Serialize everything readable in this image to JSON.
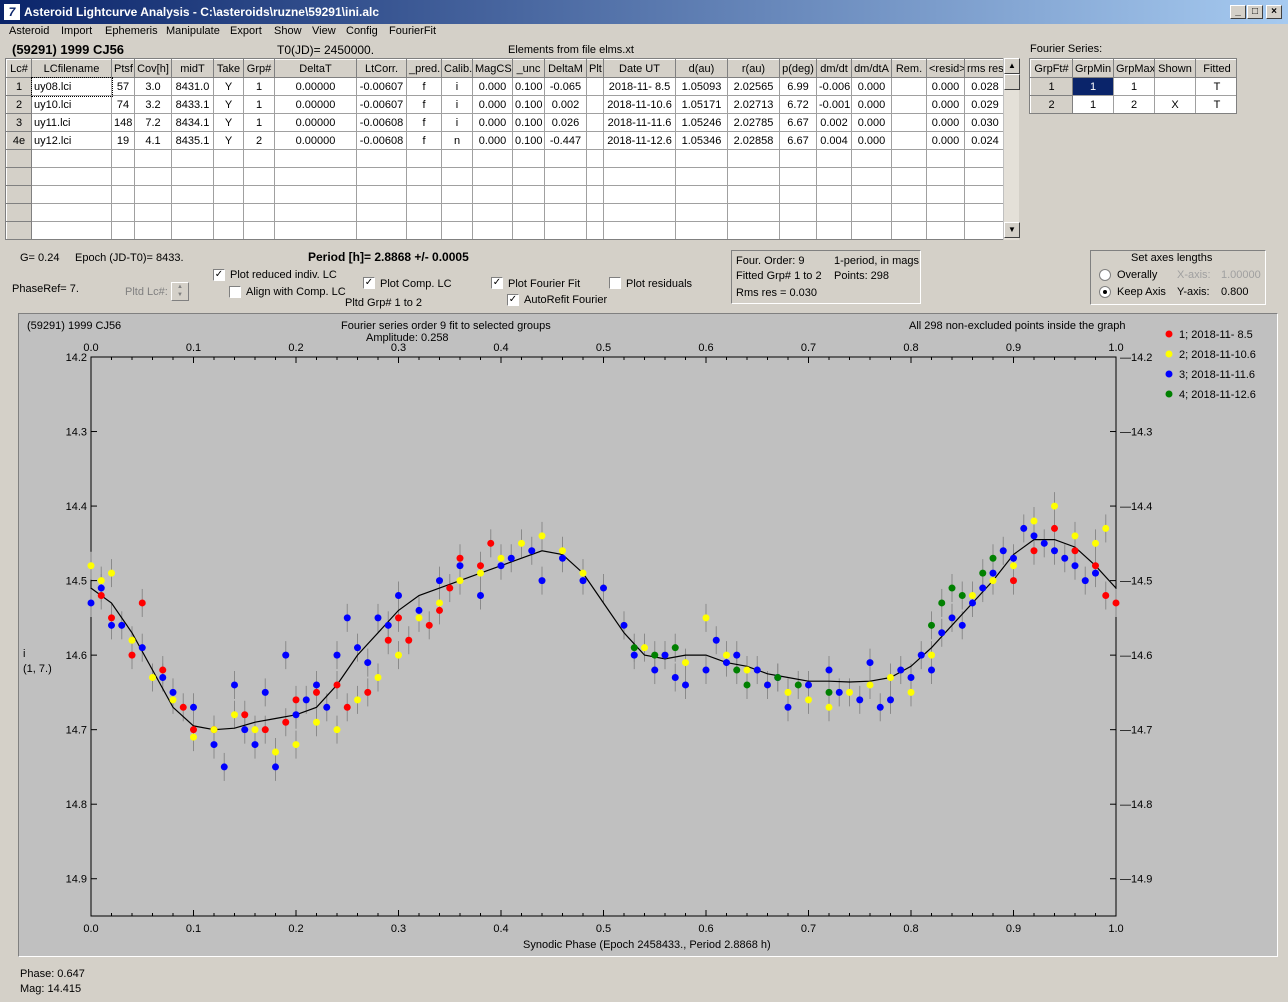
{
  "window": {
    "title": "Asteroid Lightcurve Analysis - C:\\asteroids\\ruzne\\59291\\ini.alc",
    "icon": "alc-app-icon",
    "controls": [
      "_",
      "□",
      "×"
    ]
  },
  "menu": [
    "Asteroid",
    "Import",
    "Ephemeris",
    "Manipulate",
    "Export",
    "Show",
    "View",
    "Config",
    "FourierFit"
  ],
  "header": {
    "object": "(59291) 1999 CJ56",
    "t0": "T0(JD)= 2450000.",
    "elements": "Elements from file elms.xt"
  },
  "lc_table": {
    "columns": [
      "Lc#",
      "LCfilename",
      "Ptsf",
      "Cov[h]",
      "midT",
      "Take",
      "Grp#",
      "DeltaT",
      "LtCorr.",
      "_pred.",
      "Calib.",
      "MagCS",
      "_unc",
      "DeltaM",
      "Plt",
      "Date UT",
      "d(au)",
      "r(au)",
      "p(deg)",
      "dm/dt",
      "dm/dtA",
      "Rem.",
      "<resid>",
      "rms res"
    ],
    "rows": [
      [
        "1",
        "uy08.lci",
        "57",
        "3.0",
        "8431.0",
        "Y",
        "1",
        "0.00000",
        "-0.00607",
        "f",
        "i",
        "0.000",
        "0.100",
        "-0.065",
        "",
        "2018-11- 8.5",
        "1.05093",
        "2.02565",
        "6.99",
        "-0.006",
        "0.000",
        "",
        "0.000",
        "0.028"
      ],
      [
        "2",
        "uy10.lci",
        "74",
        "3.2",
        "8433.1",
        "Y",
        "1",
        "0.00000",
        "-0.00607",
        "f",
        "i",
        "0.000",
        "0.100",
        "0.002",
        "",
        "2018-11-10.6",
        "1.05171",
        "2.02713",
        "6.72",
        "-0.001",
        "0.000",
        "",
        "0.000",
        "0.029"
      ],
      [
        "3",
        "uy11.lci",
        "148",
        "7.2",
        "8434.1",
        "Y",
        "1",
        "0.00000",
        "-0.00608",
        "f",
        "i",
        "0.000",
        "0.100",
        "0.026",
        "",
        "2018-11-11.6",
        "1.05246",
        "2.02785",
        "6.67",
        "0.002",
        "0.000",
        "",
        "0.000",
        "0.030"
      ],
      [
        "4e",
        "uy12.lci",
        "19",
        "4.1",
        "8435.1",
        "Y",
        "2",
        "0.00000",
        "-0.00608",
        "f",
        "n",
        "0.000",
        "0.100",
        "-0.447",
        "",
        "2018-11-12.6",
        "1.05346",
        "2.02858",
        "6.67",
        "0.004",
        "0.000",
        "",
        "0.000",
        "0.024"
      ]
    ]
  },
  "fourier_series": {
    "title": "Fourier Series:",
    "columns": [
      "GrpFt#",
      "GrpMin",
      "GrpMax",
      "Shown",
      "Fitted"
    ],
    "rows": [
      [
        "1",
        "1",
        "1",
        "",
        "T"
      ],
      [
        "2",
        "1",
        "2",
        "X",
        "T"
      ]
    ]
  },
  "params": {
    "g": "G= 0.24",
    "epoch": "Epoch (JD-T0)= 8433.",
    "phase_ref": "PhaseRef= 7.",
    "pltd_lc": "Pltd Lc#:",
    "period": "Period [h]= 2.8868 +/- 0.0005",
    "pltd_grp": "Pltd Grp#  1   to   2"
  },
  "checks": {
    "reduced": "Plot reduced indiv. LC",
    "align": "Align with Comp. LC",
    "comp": "Plot Comp. LC",
    "fourier": "Plot Fourier Fit",
    "residuals": "Plot residuals",
    "autorefit": "AutoRefit Fourier"
  },
  "fit_info": {
    "order": "Four. Order:  9",
    "mode": "1-period, in mags",
    "fitted": "Fitted Grp# 1 to 2",
    "points": "Points: 298",
    "rms": "Rms res     = 0.030"
  },
  "axes_panel": {
    "title": "Set axes lengths",
    "overall": "Overally",
    "keep": "Keep Axis",
    "xaxis_label": "X-axis:",
    "xaxis_value": "1.00000",
    "yaxis_label": "Y-axis:",
    "yaxis_value": "0.800"
  },
  "plot": {
    "object": "(59291) 1999 CJ56",
    "title": "Fourier series order 9 fit to selected groups",
    "amplitude": "Amplitude: 0.258",
    "points_note": "All 298 non-excluded points inside the graph",
    "ylabel1": "i",
    "ylabel2": "(1, 7.)",
    "xlabel": "Synodic Phase (Epoch 2458433., Period 2.8868 h)"
  },
  "status": {
    "phase": "Phase:  0.647",
    "mag": "Mag:    14.415"
  },
  "chart_data": {
    "type": "scatter",
    "xlim": [
      0,
      1
    ],
    "ylim": [
      14.2,
      14.95
    ],
    "y_inverted": true,
    "xticks": [
      "0.0",
      "0.1",
      "0.2",
      "0.3",
      "0.4",
      "0.5",
      "0.6",
      "0.7",
      "0.8",
      "0.9",
      "1.0"
    ],
    "yticks": [
      "14.2",
      "14.3",
      "14.4",
      "14.5",
      "14.6",
      "14.7",
      "14.8",
      "14.9"
    ],
    "legend_position": "right",
    "grid": false,
    "series": [
      {
        "name": "1; 2018-11- 8.5",
        "color": "#ff0000",
        "points": [
          [
            0.01,
            14.52
          ],
          [
            0.02,
            14.55
          ],
          [
            0.04,
            14.6
          ],
          [
            0.05,
            14.53
          ],
          [
            0.07,
            14.62
          ],
          [
            0.09,
            14.67
          ],
          [
            0.1,
            14.7
          ],
          [
            0.12,
            14.7
          ],
          [
            0.15,
            14.68
          ],
          [
            0.17,
            14.7
          ],
          [
            0.19,
            14.69
          ],
          [
            0.2,
            14.66
          ],
          [
            0.22,
            14.65
          ],
          [
            0.24,
            14.64
          ],
          [
            0.25,
            14.67
          ],
          [
            0.27,
            14.65
          ],
          [
            0.29,
            14.58
          ],
          [
            0.3,
            14.55
          ],
          [
            0.31,
            14.58
          ],
          [
            0.33,
            14.56
          ],
          [
            0.34,
            14.54
          ],
          [
            0.35,
            14.51
          ],
          [
            0.36,
            14.47
          ],
          [
            0.38,
            14.48
          ],
          [
            0.39,
            14.45
          ],
          [
            0.9,
            14.5
          ],
          [
            0.92,
            14.46
          ],
          [
            0.94,
            14.43
          ],
          [
            0.96,
            14.46
          ],
          [
            0.98,
            14.48
          ],
          [
            0.99,
            14.52
          ],
          [
            1.0,
            14.53
          ]
        ]
      },
      {
        "name": "2; 2018-11-10.6",
        "color": "#ffff00",
        "points": [
          [
            0.0,
            14.48
          ],
          [
            0.01,
            14.5
          ],
          [
            0.02,
            14.49
          ],
          [
            0.04,
            14.58
          ],
          [
            0.06,
            14.63
          ],
          [
            0.08,
            14.66
          ],
          [
            0.1,
            14.71
          ],
          [
            0.12,
            14.7
          ],
          [
            0.14,
            14.68
          ],
          [
            0.16,
            14.7
          ],
          [
            0.18,
            14.73
          ],
          [
            0.2,
            14.72
          ],
          [
            0.22,
            14.69
          ],
          [
            0.24,
            14.7
          ],
          [
            0.26,
            14.66
          ],
          [
            0.28,
            14.63
          ],
          [
            0.3,
            14.6
          ],
          [
            0.32,
            14.55
          ],
          [
            0.34,
            14.53
          ],
          [
            0.36,
            14.5
          ],
          [
            0.38,
            14.49
          ],
          [
            0.4,
            14.47
          ],
          [
            0.42,
            14.45
          ],
          [
            0.44,
            14.44
          ],
          [
            0.46,
            14.46
          ],
          [
            0.48,
            14.49
          ],
          [
            0.5,
            14.51
          ],
          [
            0.52,
            14.56
          ],
          [
            0.54,
            14.59
          ],
          [
            0.56,
            14.6
          ],
          [
            0.58,
            14.61
          ],
          [
            0.6,
            14.55
          ],
          [
            0.62,
            14.6
          ],
          [
            0.64,
            14.62
          ],
          [
            0.66,
            14.64
          ],
          [
            0.68,
            14.65
          ],
          [
            0.7,
            14.66
          ],
          [
            0.72,
            14.67
          ],
          [
            0.74,
            14.65
          ],
          [
            0.76,
            14.64
          ],
          [
            0.78,
            14.63
          ],
          [
            0.8,
            14.65
          ],
          [
            0.82,
            14.6
          ],
          [
            0.84,
            14.55
          ],
          [
            0.86,
            14.52
          ],
          [
            0.88,
            14.5
          ],
          [
            0.9,
            14.48
          ],
          [
            0.92,
            14.42
          ],
          [
            0.94,
            14.4
          ],
          [
            0.96,
            14.44
          ],
          [
            0.98,
            14.45
          ],
          [
            0.99,
            14.43
          ]
        ]
      },
      {
        "name": "3; 2018-11-11.6",
        "color": "#0000ff",
        "points": [
          [
            0.0,
            14.53
          ],
          [
            0.01,
            14.51
          ],
          [
            0.02,
            14.56
          ],
          [
            0.03,
            14.56
          ],
          [
            0.05,
            14.59
          ],
          [
            0.07,
            14.63
          ],
          [
            0.08,
            14.65
          ],
          [
            0.1,
            14.67
          ],
          [
            0.12,
            14.72
          ],
          [
            0.13,
            14.75
          ],
          [
            0.14,
            14.64
          ],
          [
            0.15,
            14.7
          ],
          [
            0.16,
            14.72
          ],
          [
            0.17,
            14.65
          ],
          [
            0.18,
            14.75
          ],
          [
            0.19,
            14.6
          ],
          [
            0.2,
            14.68
          ],
          [
            0.21,
            14.66
          ],
          [
            0.22,
            14.64
          ],
          [
            0.23,
            14.67
          ],
          [
            0.24,
            14.6
          ],
          [
            0.25,
            14.55
          ],
          [
            0.26,
            14.59
          ],
          [
            0.27,
            14.61
          ],
          [
            0.28,
            14.55
          ],
          [
            0.29,
            14.56
          ],
          [
            0.3,
            14.52
          ],
          [
            0.32,
            14.54
          ],
          [
            0.34,
            14.5
          ],
          [
            0.36,
            14.48
          ],
          [
            0.38,
            14.52
          ],
          [
            0.4,
            14.48
          ],
          [
            0.41,
            14.47
          ],
          [
            0.43,
            14.46
          ],
          [
            0.44,
            14.5
          ],
          [
            0.46,
            14.47
          ],
          [
            0.48,
            14.5
          ],
          [
            0.5,
            14.51
          ],
          [
            0.52,
            14.56
          ],
          [
            0.53,
            14.6
          ],
          [
            0.55,
            14.62
          ],
          [
            0.56,
            14.6
          ],
          [
            0.57,
            14.63
          ],
          [
            0.58,
            14.64
          ],
          [
            0.6,
            14.62
          ],
          [
            0.61,
            14.58
          ],
          [
            0.62,
            14.61
          ],
          [
            0.63,
            14.6
          ],
          [
            0.65,
            14.62
          ],
          [
            0.66,
            14.64
          ],
          [
            0.67,
            14.63
          ],
          [
            0.68,
            14.67
          ],
          [
            0.7,
            14.64
          ],
          [
            0.72,
            14.62
          ],
          [
            0.73,
            14.65
          ],
          [
            0.75,
            14.66
          ],
          [
            0.76,
            14.61
          ],
          [
            0.77,
            14.67
          ],
          [
            0.78,
            14.66
          ],
          [
            0.79,
            14.62
          ],
          [
            0.8,
            14.63
          ],
          [
            0.81,
            14.6
          ],
          [
            0.82,
            14.62
          ],
          [
            0.83,
            14.57
          ],
          [
            0.84,
            14.55
          ],
          [
            0.85,
            14.56
          ],
          [
            0.86,
            14.53
          ],
          [
            0.87,
            14.51
          ],
          [
            0.88,
            14.49
          ],
          [
            0.89,
            14.46
          ],
          [
            0.9,
            14.47
          ],
          [
            0.91,
            14.43
          ],
          [
            0.92,
            14.44
          ],
          [
            0.93,
            14.45
          ],
          [
            0.94,
            14.46
          ],
          [
            0.95,
            14.47
          ],
          [
            0.96,
            14.48
          ],
          [
            0.97,
            14.5
          ],
          [
            0.98,
            14.49
          ]
        ]
      },
      {
        "name": "4; 2018-11-12.6",
        "color": "#008000",
        "points": [
          [
            0.53,
            14.59
          ],
          [
            0.55,
            14.6
          ],
          [
            0.57,
            14.59
          ],
          [
            0.63,
            14.62
          ],
          [
            0.64,
            14.64
          ],
          [
            0.67,
            14.63
          ],
          [
            0.69,
            14.64
          ],
          [
            0.72,
            14.65
          ],
          [
            0.82,
            14.56
          ],
          [
            0.83,
            14.53
          ],
          [
            0.84,
            14.51
          ],
          [
            0.85,
            14.52
          ],
          [
            0.87,
            14.49
          ],
          [
            0.88,
            14.47
          ]
        ]
      }
    ],
    "fit_curve": [
      [
        0.0,
        14.51
      ],
      [
        0.02,
        14.53
      ],
      [
        0.04,
        14.57
      ],
      [
        0.06,
        14.62
      ],
      [
        0.08,
        14.67
      ],
      [
        0.1,
        14.695
      ],
      [
        0.12,
        14.7
      ],
      [
        0.14,
        14.698
      ],
      [
        0.16,
        14.69
      ],
      [
        0.18,
        14.685
      ],
      [
        0.2,
        14.68
      ],
      [
        0.22,
        14.67
      ],
      [
        0.24,
        14.64
      ],
      [
        0.26,
        14.6
      ],
      [
        0.28,
        14.57
      ],
      [
        0.3,
        14.54
      ],
      [
        0.32,
        14.52
      ],
      [
        0.34,
        14.51
      ],
      [
        0.36,
        14.5
      ],
      [
        0.38,
        14.49
      ],
      [
        0.4,
        14.48
      ],
      [
        0.42,
        14.47
      ],
      [
        0.44,
        14.46
      ],
      [
        0.46,
        14.465
      ],
      [
        0.48,
        14.49
      ],
      [
        0.5,
        14.53
      ],
      [
        0.52,
        14.57
      ],
      [
        0.54,
        14.6
      ],
      [
        0.56,
        14.605
      ],
      [
        0.58,
        14.6
      ],
      [
        0.6,
        14.6
      ],
      [
        0.62,
        14.61
      ],
      [
        0.64,
        14.615
      ],
      [
        0.66,
        14.625
      ],
      [
        0.68,
        14.63
      ],
      [
        0.7,
        14.635
      ],
      [
        0.72,
        14.635
      ],
      [
        0.74,
        14.636
      ],
      [
        0.76,
        14.635
      ],
      [
        0.78,
        14.63
      ],
      [
        0.8,
        14.615
      ],
      [
        0.82,
        14.59
      ],
      [
        0.84,
        14.56
      ],
      [
        0.86,
        14.53
      ],
      [
        0.88,
        14.5
      ],
      [
        0.9,
        14.465
      ],
      [
        0.92,
        14.445
      ],
      [
        0.94,
        14.445
      ],
      [
        0.96,
        14.455
      ],
      [
        0.98,
        14.48
      ],
      [
        1.0,
        14.51
      ]
    ]
  }
}
